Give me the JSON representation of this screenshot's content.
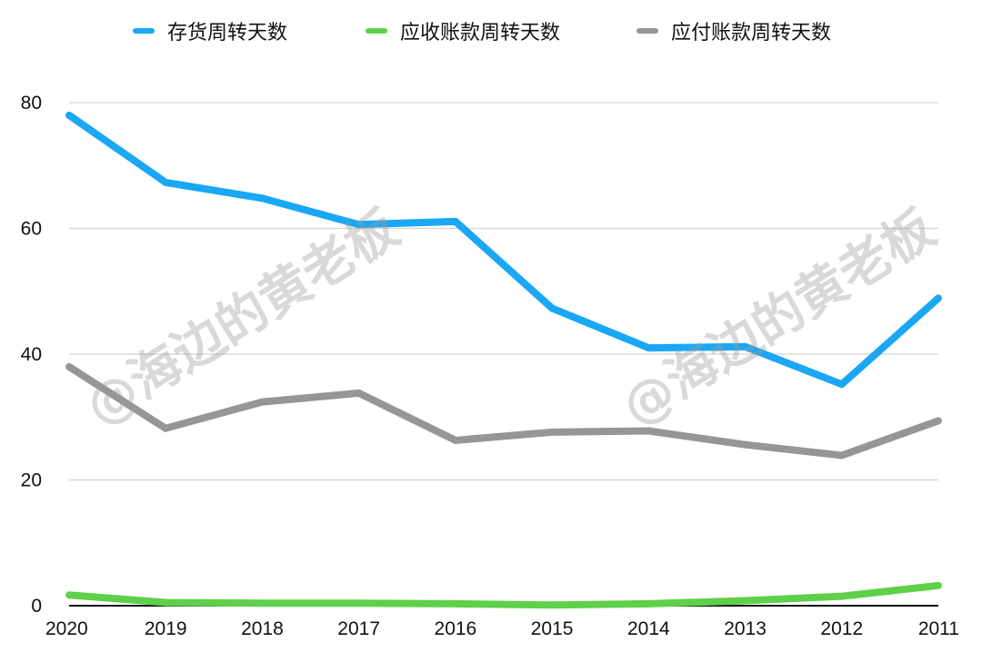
{
  "chart_data": {
    "type": "line",
    "categories": [
      "2020",
      "2019",
      "2018",
      "2017",
      "2016",
      "2015",
      "2014",
      "2013",
      "2012",
      "2011"
    ],
    "series": [
      {
        "name": "存货周转天数",
        "color": "#1aa7f5",
        "values": [
          78,
          67.3,
          64.8,
          60.6,
          61.1,
          47.3,
          41.0,
          41.2,
          35.2,
          48.9
        ]
      },
      {
        "name": "应收账款周转天数",
        "color": "#5fd04a",
        "values": [
          1.7,
          0.5,
          0.4,
          0.4,
          0.3,
          0.1,
          0.3,
          0.8,
          1.5,
          3.2
        ]
      },
      {
        "name": "应付账款周转天数",
        "color": "#969696",
        "values": [
          38.0,
          28.2,
          32.4,
          33.8,
          26.3,
          27.6,
          27.8,
          25.6,
          23.9,
          29.4
        ]
      }
    ],
    "y_ticks": [
      "0",
      "20",
      "40",
      "60",
      "80"
    ],
    "ylim": [
      0,
      80
    ],
    "grid": true,
    "legend_position": "top",
    "watermark": "@海边的黄老板"
  }
}
